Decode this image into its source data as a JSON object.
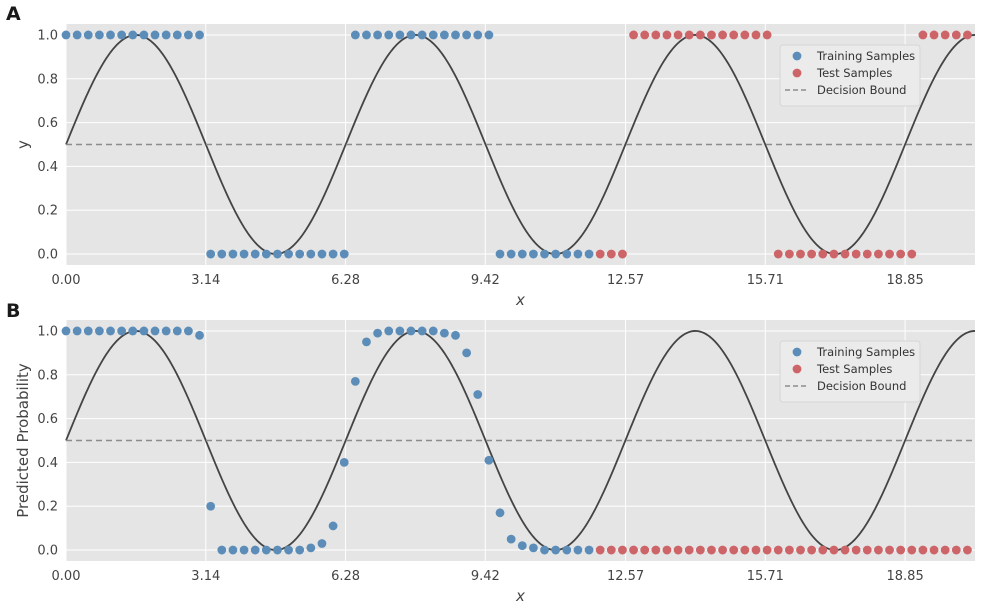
{
  "figure": {
    "panels": [
      {
        "letter": "A",
        "ylabel": "y",
        "xlabel": "x",
        "legend": [
          "Training Samples",
          "Test Samples",
          "Decision Bound"
        ]
      },
      {
        "letter": "B",
        "ylabel": "Predicted Probability",
        "xlabel": "x",
        "legend": [
          "Training Samples",
          "Test Samples",
          "Decision Bound"
        ]
      }
    ]
  },
  "colors": {
    "training": "#5b8db8",
    "test": "#cd6468",
    "curve": "#444444",
    "boundary": "#8c8c8c",
    "plot_bg": "#e5e5e5",
    "grid": "#ffffff"
  },
  "chart_data": [
    {
      "type": "scatter",
      "title": "",
      "xlabel": "x",
      "ylabel": "y",
      "xlim": [
        0,
        20.42
      ],
      "ylim": [
        -0.05,
        1.05
      ],
      "xticks": [
        "0.00",
        "3.14",
        "6.28",
        "9.42",
        "12.57",
        "15.71",
        "18.85"
      ],
      "yticks": [
        "0.0",
        "0.2",
        "0.4",
        "0.6",
        "0.8",
        "1.0"
      ],
      "grid": true,
      "legend_position": "right",
      "curve": {
        "function": "0.5 + 0.5*sin(x)",
        "x_range": [
          0,
          20.42
        ]
      },
      "decision_bound": 0.5,
      "series": [
        {
          "name": "Training Samples",
          "x": [
            0.0,
            0.25,
            0.5,
            0.75,
            1.0,
            1.25,
            1.5,
            1.75,
            2.0,
            2.25,
            2.5,
            2.75,
            3.0,
            3.25,
            3.5,
            3.75,
            4.0,
            4.25,
            4.5,
            4.75,
            5.0,
            5.25,
            5.5,
            5.75,
            6.0,
            6.25,
            6.5,
            6.75,
            7.0,
            7.25,
            7.5,
            7.75,
            8.0,
            8.25,
            8.5,
            8.75,
            9.0,
            9.25,
            9.5,
            9.75,
            10.0,
            10.25,
            10.5,
            10.75,
            11.0,
            11.25,
            11.5,
            11.75
          ],
          "y": [
            1,
            1,
            1,
            1,
            1,
            1,
            1,
            1,
            1,
            1,
            1,
            1,
            1,
            0,
            0,
            0,
            0,
            0,
            0,
            0,
            0,
            0,
            0,
            0,
            0,
            0,
            1,
            1,
            1,
            1,
            1,
            1,
            1,
            1,
            1,
            1,
            1,
            1,
            1,
            0,
            0,
            0,
            0,
            0,
            0,
            0,
            0,
            0
          ]
        },
        {
          "name": "Test Samples",
          "x": [
            12.0,
            12.25,
            12.5,
            12.75,
            13.0,
            13.25,
            13.5,
            13.75,
            14.0,
            14.25,
            14.5,
            14.75,
            15.0,
            15.25,
            15.5,
            15.75,
            16.0,
            16.25,
            16.5,
            16.75,
            17.0,
            17.25,
            17.5,
            17.75,
            18.0,
            18.25,
            18.5,
            18.75,
            19.0,
            19.25,
            19.5,
            19.75,
            20.0,
            20.25
          ],
          "y": [
            0,
            0,
            0,
            1,
            1,
            1,
            1,
            1,
            1,
            1,
            1,
            1,
            1,
            1,
            1,
            1,
            0,
            0,
            0,
            0,
            0,
            0,
            0,
            0,
            0,
            0,
            0,
            0,
            0,
            1,
            1,
            1,
            1,
            1
          ]
        }
      ]
    },
    {
      "type": "scatter",
      "title": "",
      "xlabel": "x",
      "ylabel": "Predicted Probability",
      "xlim": [
        0,
        20.42
      ],
      "ylim": [
        -0.05,
        1.05
      ],
      "xticks": [
        "0.00",
        "3.14",
        "6.28",
        "9.42",
        "12.57",
        "15.71",
        "18.85"
      ],
      "yticks": [
        "0.0",
        "0.2",
        "0.4",
        "0.6",
        "0.8",
        "1.0"
      ],
      "grid": true,
      "legend_position": "right",
      "curve": {
        "function": "0.5 + 0.5*sin(x)",
        "x_range": [
          0,
          20.42
        ]
      },
      "decision_bound": 0.5,
      "series": [
        {
          "name": "Training Samples",
          "x": [
            0.0,
            0.25,
            0.5,
            0.75,
            1.0,
            1.25,
            1.5,
            1.75,
            2.0,
            2.25,
            2.5,
            2.75,
            3.0,
            3.25,
            3.5,
            3.75,
            4.0,
            4.25,
            4.5,
            4.75,
            5.0,
            5.25,
            5.5,
            5.75,
            6.0,
            6.25,
            6.5,
            6.75,
            7.0,
            7.25,
            7.5,
            7.75,
            8.0,
            8.25,
            8.5,
            8.75,
            9.0,
            9.25,
            9.5,
            9.75,
            10.0,
            10.25,
            10.5,
            10.75,
            11.0,
            11.25,
            11.5,
            11.75
          ],
          "y": [
            1.0,
            1.0,
            1.0,
            1.0,
            1.0,
            1.0,
            1.0,
            1.0,
            1.0,
            1.0,
            1.0,
            1.0,
            0.98,
            0.2,
            0.0,
            0.0,
            0.0,
            0.0,
            0.0,
            0.0,
            0.0,
            0.0,
            0.01,
            0.03,
            0.11,
            0.4,
            0.77,
            0.95,
            0.99,
            1.0,
            1.0,
            1.0,
            1.0,
            1.0,
            0.99,
            0.98,
            0.9,
            0.71,
            0.41,
            0.17,
            0.05,
            0.02,
            0.01,
            0.0,
            0.0,
            0.0,
            0.0,
            0.0
          ]
        },
        {
          "name": "Test Samples",
          "x": [
            12.0,
            12.25,
            12.5,
            12.75,
            13.0,
            13.25,
            13.5,
            13.75,
            14.0,
            14.25,
            14.5,
            14.75,
            15.0,
            15.25,
            15.5,
            15.75,
            16.0,
            16.25,
            16.5,
            16.75,
            17.0,
            17.25,
            17.5,
            17.75,
            18.0,
            18.25,
            18.5,
            18.75,
            19.0,
            19.25,
            19.5,
            19.75,
            20.0,
            20.25
          ],
          "y": [
            0,
            0,
            0,
            0,
            0,
            0,
            0,
            0,
            0,
            0,
            0,
            0,
            0,
            0,
            0,
            0,
            0,
            0,
            0,
            0,
            0,
            0,
            0,
            0,
            0,
            0,
            0,
            0,
            0,
            0,
            0,
            0,
            0,
            0
          ]
        }
      ]
    }
  ]
}
